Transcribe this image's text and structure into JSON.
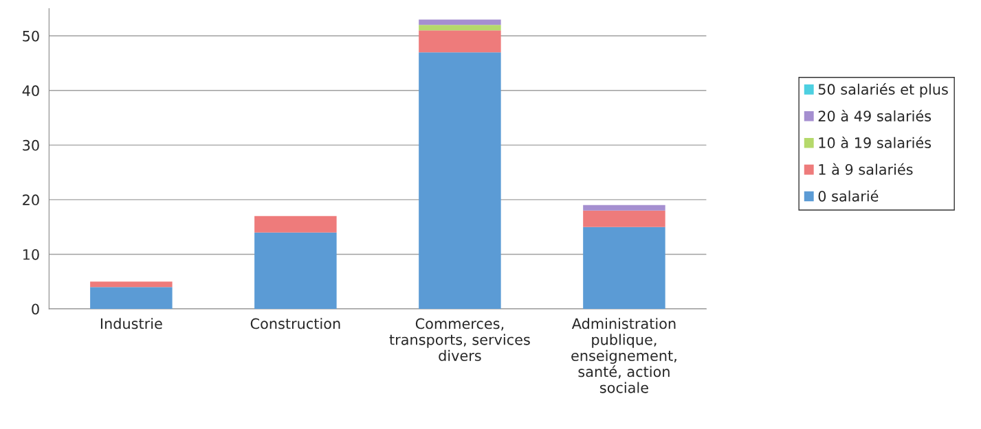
{
  "chart_data": {
    "type": "bar",
    "stacked": true,
    "categories": [
      "Industrie",
      "Construction",
      "Commerces,\ntransports, services\ndivers",
      "Administration\npublique,\nenseignement,\nsanté, action\nsociale"
    ],
    "series": [
      {
        "name": "0 salarié",
        "color": "#5b9bd5",
        "values": [
          4,
          14,
          47,
          15
        ]
      },
      {
        "name": "1 à 9 salariés",
        "color": "#ee7b7b",
        "values": [
          1,
          3,
          4,
          3
        ]
      },
      {
        "name": "10 à 19 salariés",
        "color": "#b5d96b",
        "values": [
          0,
          0,
          1,
          0
        ]
      },
      {
        "name": "20 à 49 salariés",
        "color": "#a58fd0",
        "values": [
          0,
          0,
          1,
          1
        ]
      },
      {
        "name": "50 salariés et plus",
        "color": "#4dd0e1",
        "values": [
          0,
          0,
          0,
          0
        ]
      }
    ],
    "ylim": [
      0,
      55
    ],
    "yticks": [
      0,
      10,
      20,
      30,
      40,
      50
    ],
    "grid": "y",
    "legend": "right"
  }
}
